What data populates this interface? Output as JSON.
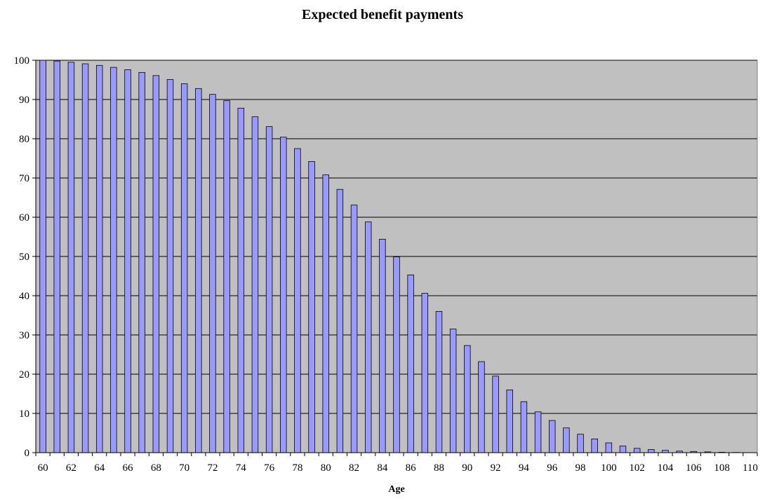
{
  "chart_data": {
    "type": "bar",
    "title": "Expected benefit payments",
    "xlabel": "Age",
    "ylabel": "",
    "ylim": [
      0,
      100
    ],
    "yticks": [
      0,
      10,
      20,
      30,
      40,
      50,
      60,
      70,
      80,
      90,
      100
    ],
    "x_tick_labels": [
      "60",
      "62",
      "64",
      "66",
      "68",
      "70",
      "72",
      "74",
      "76",
      "78",
      "80",
      "82",
      "84",
      "86",
      "88",
      "90",
      "92",
      "94",
      "96",
      "98",
      "100",
      "102",
      "104",
      "106",
      "108",
      "110"
    ],
    "grid": true,
    "legend": "none",
    "colors": {
      "plot_background": "#c0c0c0",
      "bar_fill": "#9999ff",
      "bar_stroke": "#000000",
      "gridline": "#000000"
    },
    "categories": [
      60,
      61,
      62,
      63,
      64,
      65,
      66,
      67,
      68,
      69,
      70,
      71,
      72,
      73,
      74,
      75,
      76,
      77,
      78,
      79,
      80,
      81,
      82,
      83,
      84,
      85,
      86,
      87,
      88,
      89,
      90,
      91,
      92,
      93,
      94,
      95,
      96,
      97,
      98,
      99,
      100,
      101,
      102,
      103,
      104,
      105,
      106,
      107,
      108,
      109,
      110
    ],
    "values": [
      100,
      99.8,
      99.5,
      99.1,
      98.7,
      98.2,
      97.6,
      96.9,
      96.1,
      95.1,
      94.0,
      92.8,
      91.3,
      89.7,
      87.8,
      85.6,
      83.1,
      80.4,
      77.5,
      74.2,
      70.8,
      67.1,
      63.1,
      58.8,
      54.4,
      49.9,
      45.3,
      40.6,
      36.0,
      31.5,
      27.3,
      23.2,
      19.5,
      16.0,
      13.0,
      10.4,
      8.2,
      6.3,
      4.7,
      3.5,
      2.5,
      1.7,
      1.1,
      0.8,
      0.6,
      0.4,
      0.3,
      0.2,
      0.1,
      0.05,
      0.02
    ]
  }
}
